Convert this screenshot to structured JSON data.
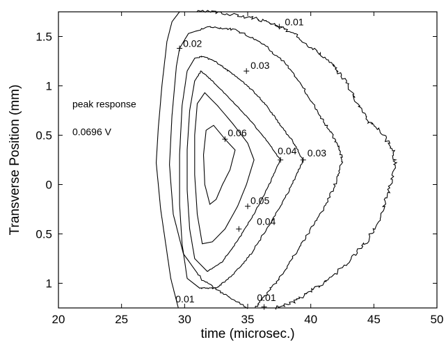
{
  "chart_data": {
    "type": "contour",
    "xlabel": "time (microsec.)",
    "ylabel": "Transverse Position (mm)",
    "xlim": [
      20,
      50
    ],
    "ylim": [
      -1.25,
      1.75
    ],
    "xticks": [
      {
        "value": 20,
        "label": "20"
      },
      {
        "value": 25,
        "label": "25"
      },
      {
        "value": 30,
        "label": "30"
      },
      {
        "value": 35,
        "label": "35"
      },
      {
        "value": 40,
        "label": "40"
      },
      {
        "value": 45,
        "label": "45"
      },
      {
        "value": 50,
        "label": "50"
      }
    ],
    "yticks": [
      {
        "value": 1.5,
        "label": "1.5"
      },
      {
        "value": 1.0,
        "label": "1"
      },
      {
        "value": 0.5,
        "label": "0.5"
      },
      {
        "value": 0.0,
        "label": "0"
      },
      {
        "value": -0.5,
        "label": "0.5"
      },
      {
        "value": -1.0,
        "label": "1"
      }
    ],
    "annotations": [
      {
        "text": "peak response",
        "x": 21.1,
        "y": 0.78
      },
      {
        "text": "0.0696 V",
        "x": 21.1,
        "y": 0.5
      }
    ],
    "contours": [
      {
        "level": 0.01,
        "jitter": 0.09,
        "seed": 3,
        "points": [
          [
            29.5,
            -1.25
          ],
          [
            28.9,
            -0.95
          ],
          [
            28.5,
            -0.6
          ],
          [
            28.1,
            -0.25
          ],
          [
            27.75,
            0.22
          ],
          [
            27.9,
            0.55
          ],
          [
            28.2,
            1.0
          ],
          [
            28.6,
            1.45
          ],
          [
            29.0,
            1.65
          ],
          [
            29.6,
            1.75
          ],
          [
            32.0,
            1.75
          ],
          [
            34.0,
            1.72
          ],
          [
            36.0,
            1.67
          ],
          [
            37.5,
            1.6
          ],
          [
            39.0,
            1.5
          ],
          [
            40.5,
            1.35
          ],
          [
            41.8,
            1.2
          ],
          [
            42.8,
            1.05
          ],
          [
            43.6,
            0.85
          ],
          [
            44.5,
            0.65
          ],
          [
            45.5,
            0.55
          ],
          [
            46.5,
            0.35
          ],
          [
            46.7,
            0.2
          ],
          [
            46.2,
            -0.05
          ],
          [
            45.6,
            -0.3
          ],
          [
            44.6,
            -0.55
          ],
          [
            43.2,
            -0.75
          ],
          [
            41.5,
            -0.95
          ],
          [
            39.8,
            -1.1
          ],
          [
            38.5,
            -1.2
          ],
          [
            37.2,
            -1.25
          ]
        ]
      },
      {
        "level": 0.02,
        "jitter": 0.06,
        "seed": 7,
        "points": [
          [
            35.0,
            -1.25
          ],
          [
            33.0,
            -1.1
          ],
          [
            31.3,
            -0.95
          ],
          [
            29.9,
            -0.7
          ],
          [
            29.1,
            -0.3
          ],
          [
            28.8,
            0.2
          ],
          [
            29.0,
            0.7
          ],
          [
            29.35,
            1.2
          ],
          [
            29.6,
            1.38
          ],
          [
            30.3,
            1.53
          ],
          [
            32.0,
            1.6
          ],
          [
            34.0,
            1.57
          ],
          [
            36.0,
            1.45
          ],
          [
            37.8,
            1.25
          ],
          [
            39.3,
            1.0
          ],
          [
            40.5,
            0.75
          ],
          [
            41.5,
            0.55
          ],
          [
            42.2,
            0.38
          ],
          [
            42.5,
            0.25
          ],
          [
            42.1,
            0.05
          ],
          [
            41.2,
            -0.2
          ],
          [
            40.0,
            -0.45
          ],
          [
            38.8,
            -0.7
          ],
          [
            37.5,
            -0.95
          ],
          [
            36.2,
            -1.15
          ],
          [
            35.6,
            -1.25
          ]
        ]
      },
      {
        "level": 0.03,
        "jitter": 0.035,
        "seed": 11,
        "points": [
          [
            30.2,
            -0.95
          ],
          [
            29.8,
            -0.6
          ],
          [
            29.6,
            -0.2
          ],
          [
            29.6,
            0.3
          ],
          [
            29.8,
            0.8
          ],
          [
            30.2,
            1.15
          ],
          [
            30.8,
            1.28
          ],
          [
            31.5,
            1.3
          ],
          [
            32.5,
            1.24
          ],
          [
            33.5,
            1.15
          ],
          [
            35.0,
            1.0
          ],
          [
            36.3,
            0.83
          ],
          [
            37.5,
            0.62
          ],
          [
            38.5,
            0.45
          ],
          [
            39.4,
            0.25
          ],
          [
            38.7,
            0.05
          ],
          [
            37.7,
            -0.2
          ],
          [
            36.5,
            -0.45
          ],
          [
            35.3,
            -0.7
          ],
          [
            33.8,
            -0.92
          ],
          [
            32.5,
            -1.05
          ],
          [
            31.2,
            -1.05
          ]
        ]
      },
      {
        "level": 0.04,
        "jitter": 0.02,
        "seed": 13,
        "points": [
          [
            30.8,
            -0.75
          ],
          [
            30.4,
            -0.45
          ],
          [
            30.2,
            -0.05
          ],
          [
            30.2,
            0.35
          ],
          [
            30.4,
            0.75
          ],
          [
            30.8,
            1.05
          ],
          [
            31.3,
            1.15
          ],
          [
            32.2,
            1.05
          ],
          [
            33.5,
            0.88
          ],
          [
            35.0,
            0.68
          ],
          [
            36.5,
            0.45
          ],
          [
            37.6,
            0.25
          ],
          [
            36.7,
            0.0
          ],
          [
            35.5,
            -0.3
          ],
          [
            34.3,
            -0.55
          ],
          [
            33.0,
            -0.78
          ],
          [
            31.8,
            -0.88
          ]
        ]
      },
      {
        "level": 0.05,
        "jitter": 0.0,
        "seed": 17,
        "points": [
          [
            31.4,
            -0.6
          ],
          [
            31.0,
            -0.3
          ],
          [
            30.8,
            0.1
          ],
          [
            30.8,
            0.5
          ],
          [
            31.0,
            0.82
          ],
          [
            31.6,
            0.93
          ],
          [
            32.6,
            0.8
          ],
          [
            33.8,
            0.62
          ],
          [
            35.0,
            0.42
          ],
          [
            35.5,
            0.25
          ],
          [
            34.9,
            0.0
          ],
          [
            34.2,
            -0.22
          ],
          [
            33.2,
            -0.45
          ],
          [
            32.2,
            -0.58
          ]
        ]
      },
      {
        "level": 0.06,
        "jitter": 0.0,
        "seed": 19,
        "points": [
          [
            32.0,
            -0.2
          ],
          [
            31.6,
            0.0
          ],
          [
            31.5,
            0.3
          ],
          [
            31.7,
            0.55
          ],
          [
            32.3,
            0.6
          ],
          [
            33.2,
            0.46
          ],
          [
            34.0,
            0.35
          ],
          [
            33.6,
            0.15
          ],
          [
            33.0,
            0.0
          ],
          [
            32.5,
            -0.15
          ]
        ]
      }
    ],
    "contour_labels": [
      {
        "text": "0.01",
        "x": 37.5,
        "y": 1.6,
        "dx": 8,
        "dy": -2
      },
      {
        "text": "0.02",
        "x": 29.6,
        "y": 1.38,
        "dx": 5,
        "dy": -2
      },
      {
        "text": "0.03",
        "x": 34.9,
        "y": 1.15,
        "dx": 6,
        "dy": -3
      },
      {
        "text": "0.06",
        "x": 33.2,
        "y": 0.46,
        "dx": 4,
        "dy": -4
      },
      {
        "text": "0.04",
        "x": 37.6,
        "y": 0.25,
        "dx": -4,
        "dy": -8
      },
      {
        "text": "0.03",
        "x": 39.4,
        "y": 0.25,
        "dx": 6,
        "dy": -5
      },
      {
        "text": "0.05",
        "x": 35.0,
        "y": -0.22,
        "dx": 4,
        "dy": -3
      },
      {
        "text": "0.04",
        "x": 35.5,
        "y": -0.45,
        "dx": 4,
        "dy": -6
      },
      {
        "text": "0.01",
        "x": 29.5,
        "y": -1.25,
        "dx": -4,
        "dy": -8
      },
      {
        "text": "0.01",
        "x": 36.4,
        "y": -1.25,
        "dx": -12,
        "dy": -10
      }
    ],
    "markers": [
      {
        "x": 37.5,
        "y": 1.6
      },
      {
        "x": 29.6,
        "y": 1.38
      },
      {
        "x": 34.9,
        "y": 1.15
      },
      {
        "x": 33.2,
        "y": 0.46
      },
      {
        "x": 37.6,
        "y": 0.25
      },
      {
        "x": 39.4,
        "y": 0.25
      },
      {
        "x": 35.0,
        "y": -0.22
      },
      {
        "x": 34.3,
        "y": -0.45
      },
      {
        "x": 36.3,
        "y": -1.24
      }
    ]
  }
}
